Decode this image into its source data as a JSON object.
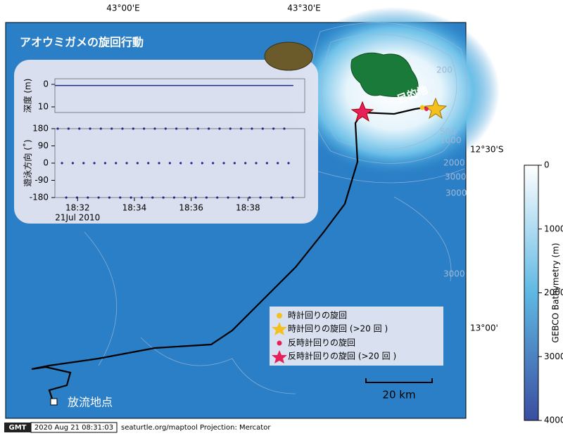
{
  "map": {
    "title": "アオウミガメの旋回行動",
    "lon_labels": [
      "43°00'E",
      "43°30'E"
    ],
    "lat_labels": [
      "12°30'S",
      "13°00'"
    ],
    "contour_labels": [
      "200",
      "500",
      "1000",
      "2000",
      "3000",
      "3000",
      "3000"
    ],
    "destination": "目的地",
    "release": "放流地点",
    "scale_bar": "20 km",
    "legend": [
      "時計回りの旋回",
      "時計回りの旋回 (>20 回 )",
      "反時計回りの旋回",
      "反時計回りの旋回 (>20 回 )"
    ],
    "footer": {
      "logo": "GMT",
      "timestamp": "2020 Aug 21 08:31:03",
      "credit": "seaturtle.org/maptool Projection: Mercator"
    }
  },
  "chart_data": [
    {
      "type": "line",
      "ylabel": "深度 (m)",
      "color": "#1f2a8a",
      "x": [
        31.2,
        39.6
      ],
      "values": [
        0.5,
        0.5
      ],
      "xlim": [
        31.2,
        40.0
      ],
      "ylim": [
        -2.5,
        12.5
      ],
      "y_inverted": true,
      "yticks": [
        0,
        10
      ]
    },
    {
      "type": "scatter",
      "ylabel": "遊泳方向 (˚)",
      "color": "#1f2a8a",
      "date_label": "21Jul 2010",
      "x": [
        31.3,
        31.45,
        31.6,
        31.68,
        31.83,
        31.98,
        32.06,
        32.21,
        32.36,
        32.44,
        32.59,
        32.74,
        32.82,
        32.97,
        33.12,
        33.2,
        33.35,
        33.5,
        33.58,
        33.73,
        33.88,
        33.96,
        34.11,
        34.26,
        34.34,
        34.49,
        34.64,
        34.72,
        34.87,
        35.02,
        35.1,
        35.25,
        35.4,
        35.48,
        35.63,
        35.78,
        35.86,
        36.01,
        36.16,
        36.24,
        36.39,
        36.54,
        36.62,
        36.77,
        36.92,
        37.0,
        37.15,
        37.3,
        37.38,
        37.53,
        37.68,
        37.76,
        37.91,
        38.06,
        38.14,
        38.29,
        38.44,
        38.52,
        38.67,
        38.82,
        38.9,
        39.05,
        39.2,
        39.28,
        39.43,
        39.58
      ],
      "values": [
        180,
        0,
        -180,
        180,
        0,
        -180,
        180,
        0,
        -180,
        180,
        0,
        -180,
        180,
        0,
        -180,
        180,
        0,
        -180,
        180,
        0,
        -180,
        180,
        0,
        -180,
        180,
        0,
        -180,
        180,
        0,
        -180,
        180,
        0,
        -180,
        180,
        0,
        -180,
        180,
        0,
        -180,
        180,
        0,
        -180,
        180,
        0,
        -180,
        180,
        0,
        -180,
        180,
        0,
        -180,
        180,
        0,
        -180,
        180,
        0,
        -180,
        180,
        0,
        -180,
        180,
        0,
        -180,
        180,
        0,
        -180
      ],
      "xlim": [
        31.2,
        40.0
      ],
      "ylim": [
        -180,
        180
      ],
      "yticks": [
        180,
        90,
        0,
        -90,
        -180
      ],
      "xticks": [
        {
          "value": 32,
          "label": "18:32"
        },
        {
          "value": 34,
          "label": "18:34"
        },
        {
          "value": 36,
          "label": "18:36"
        },
        {
          "value": 38,
          "label": "18:38"
        }
      ]
    },
    {
      "type": "colorbar",
      "ylabel": "GEBCO Bathymetry (m)",
      "colors": [
        "#ffffff",
        "#5fb8e3",
        "#3a4da0"
      ],
      "ylim": [
        0,
        4000
      ],
      "y_inverted": true,
      "yticks": [
        0,
        1000,
        2000,
        3000,
        4000
      ]
    }
  ]
}
